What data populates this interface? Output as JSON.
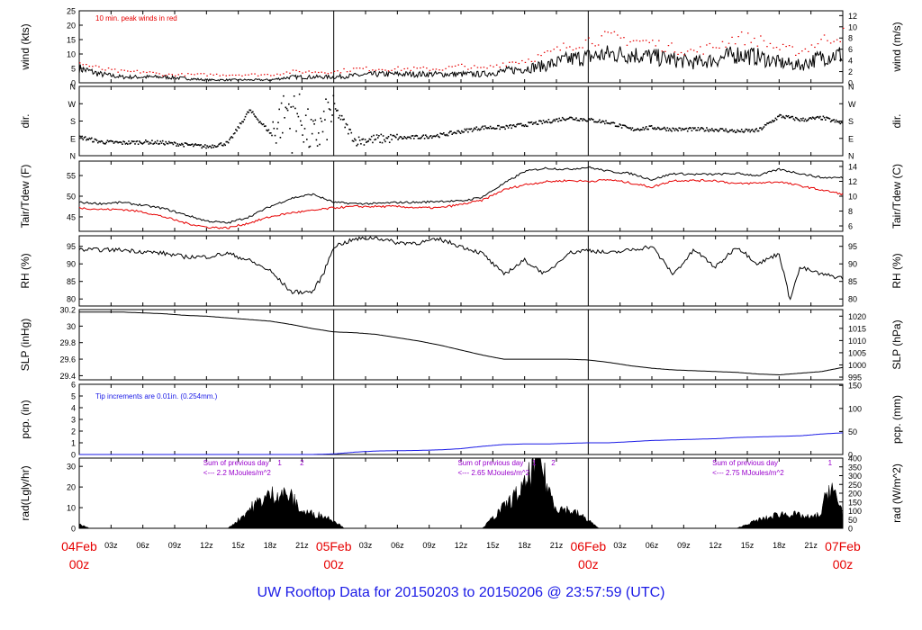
{
  "page": {
    "caption": "UW Rooftop Data for 20150203  to  20150206 @ 23:57:59  (UTC)",
    "caption_color": "#1a1ae6"
  },
  "colors": {
    "wind": "#000000",
    "peak": "#e60000",
    "tair": "#000000",
    "tdew": "#e60000",
    "precip": "#1a1ae6",
    "annotation_purple": "#9900cc",
    "date_red": "#e60000"
  },
  "chart_data": [
    {
      "id": "wind",
      "type": "line",
      "ylabel_left": "wind (kts)",
      "ylabel_right": "wind (m/s)",
      "ylim": [
        0,
        25
      ],
      "yticks": [
        0,
        5,
        10,
        15,
        20,
        25
      ],
      "right_ylim": [
        0,
        12.86
      ],
      "right_yticks": [
        0,
        2,
        4,
        6,
        8,
        10,
        12
      ],
      "annotation": "10 min. peak winds in red",
      "series": [
        {
          "name": "wind",
          "style": "line",
          "color": "#000000",
          "x": [
            0,
            2,
            4,
            6,
            8,
            10,
            12,
            14,
            16,
            18,
            20,
            22,
            24,
            26,
            28,
            30,
            32,
            34,
            36,
            38,
            40,
            42,
            44,
            46,
            48,
            50,
            52,
            54,
            56,
            58,
            60,
            62,
            64,
            66,
            68,
            70,
            72
          ],
          "y": [
            5,
            3,
            2,
            2,
            2,
            1.5,
            1,
            1,
            1,
            1,
            2,
            2,
            2,
            2.5,
            3,
            3,
            3,
            3,
            3,
            3,
            4,
            5,
            6,
            8,
            9,
            10,
            10,
            9,
            8,
            7,
            8,
            10,
            9,
            7,
            6,
            9,
            10
          ]
        },
        {
          "name": "10 min. peak winds",
          "style": "dots",
          "color": "#e60000",
          "x": [
            0,
            2,
            4,
            6,
            8,
            10,
            12,
            14,
            16,
            18,
            20,
            22,
            24,
            26,
            28,
            30,
            32,
            34,
            36,
            38,
            40,
            42,
            44,
            46,
            48,
            50,
            52,
            54,
            56,
            58,
            60,
            62,
            64,
            66,
            68,
            70,
            72
          ],
          "y": [
            7,
            5,
            4,
            4,
            3,
            3,
            3,
            3,
            3,
            3,
            4,
            4,
            4,
            5,
            5,
            5,
            5,
            5,
            6,
            5,
            7,
            8,
            10,
            13,
            15,
            16,
            15,
            14,
            12,
            11,
            13,
            16,
            15,
            12,
            11,
            15,
            17
          ]
        }
      ]
    },
    {
      "id": "dir",
      "type": "scatter",
      "ylabel_left": "dir.",
      "ylabel_right": "dir.",
      "ylim": [
        0,
        360
      ],
      "ytick_values": [
        0,
        90,
        180,
        270,
        360
      ],
      "ytick_labels": [
        "N",
        "E",
        "S",
        "W",
        "N"
      ],
      "series": [
        {
          "name": "direction",
          "style": "dots",
          "color": "#000000",
          "x": [
            0,
            2,
            4,
            6,
            8,
            10,
            12,
            14,
            16,
            18,
            20,
            22,
            24,
            26,
            28,
            30,
            32,
            34,
            36,
            38,
            40,
            42,
            44,
            46,
            48,
            50,
            52,
            54,
            56,
            58,
            60,
            62,
            64,
            66,
            68,
            70,
            72
          ],
          "y": [
            100,
            75,
            70,
            75,
            70,
            60,
            50,
            70,
            240,
            120,
            280,
            80,
            250,
            80,
            90,
            95,
            100,
            110,
            130,
            150,
            150,
            165,
            180,
            200,
            190,
            175,
            140,
            150,
            140,
            140,
            140,
            130,
            135,
            210,
            190,
            200,
            170
          ]
        }
      ]
    },
    {
      "id": "temp",
      "type": "line",
      "ylabel_left": "Tair/Tdew (F)",
      "ylabel_right": "Tair/Tdew (C)",
      "ylim": [
        41.5,
        58.5
      ],
      "yticks": [
        45,
        50,
        55
      ],
      "right_yticks": [
        6,
        8,
        10,
        12,
        14
      ],
      "series": [
        {
          "name": "Tair",
          "color": "#000000",
          "x": [
            0,
            2,
            4,
            6,
            8,
            10,
            12,
            14,
            16,
            18,
            20,
            22,
            24,
            26,
            28,
            30,
            32,
            34,
            36,
            38,
            40,
            42,
            44,
            46,
            48,
            50,
            52,
            54,
            56,
            58,
            60,
            62,
            64,
            66,
            68,
            70,
            72
          ],
          "y": [
            48.5,
            48.2,
            48.5,
            47.8,
            47,
            45.5,
            44,
            43.5,
            45,
            47.5,
            49.5,
            50.5,
            48.5,
            48.2,
            48.2,
            48.5,
            48.5,
            48.8,
            48.8,
            49.8,
            53,
            56,
            56.8,
            56.5,
            57,
            56,
            55.5,
            54,
            55.5,
            55.3,
            55.3,
            55.5,
            55,
            56.5,
            55.5,
            54.5,
            54.5
          ]
        },
        {
          "name": "Tdew",
          "color": "#e60000",
          "x": [
            0,
            2,
            4,
            6,
            8,
            10,
            12,
            14,
            16,
            18,
            20,
            22,
            24,
            26,
            28,
            30,
            32,
            34,
            36,
            38,
            40,
            42,
            44,
            46,
            48,
            50,
            52,
            54,
            56,
            58,
            60,
            62,
            64,
            66,
            68,
            70,
            72
          ],
          "y": [
            47.2,
            46.8,
            46.8,
            46.2,
            45,
            43.5,
            42.5,
            42.3,
            43.5,
            45,
            46,
            46.5,
            47.2,
            47.5,
            47.5,
            47.5,
            47.2,
            47.2,
            48,
            49,
            51.5,
            52.8,
            53.5,
            53.8,
            53.6,
            54,
            53.2,
            52.2,
            53.8,
            53.8,
            53.8,
            53,
            53.2,
            53.5,
            52.5,
            51.5,
            50.5
          ]
        }
      ]
    },
    {
      "id": "rh",
      "type": "line",
      "ylabel_left": "RH (%)",
      "ylabel_right": "RH (%)",
      "ylim": [
        78,
        98
      ],
      "yticks": [
        80,
        85,
        90,
        95
      ],
      "series": [
        {
          "name": "RH",
          "color": "#000000",
          "x": [
            0,
            2,
            4,
            6,
            8,
            10,
            12,
            14,
            16,
            18,
            20,
            21,
            22,
            23,
            24,
            26,
            28,
            30,
            32,
            34,
            36,
            38,
            40,
            42,
            44,
            46,
            48,
            50,
            52,
            54,
            56,
            58,
            60,
            62,
            64,
            66,
            67,
            68,
            70,
            72
          ],
          "y": [
            94,
            94,
            94,
            93.5,
            93,
            92,
            92,
            93,
            91,
            88,
            82,
            82,
            82,
            87,
            95,
            97,
            97.5,
            96,
            96,
            97,
            95,
            93,
            87,
            91,
            87,
            93,
            94,
            93,
            94,
            95,
            87,
            94,
            89,
            95,
            90,
            93,
            80,
            89,
            87,
            86
          ]
        }
      ]
    },
    {
      "id": "slp",
      "type": "line",
      "ylabel_left": "SLP (inHg)",
      "ylabel_right": "SLP (hPa)",
      "ylim": [
        29.35,
        30.2
      ],
      "yticks": [
        29.4,
        29.6,
        29.8,
        30.0,
        30.2
      ],
      "right_yticks": [
        995,
        1000,
        1005,
        1010,
        1015,
        1020
      ],
      "series": [
        {
          "name": "SLP",
          "color": "#000000",
          "x": [
            0,
            2,
            4,
            6,
            8,
            10,
            12,
            14,
            16,
            18,
            20,
            22,
            24,
            26,
            28,
            30,
            32,
            34,
            36,
            38,
            40,
            42,
            44,
            46,
            48,
            50,
            52,
            54,
            56,
            58,
            60,
            62,
            64,
            66,
            68,
            70,
            72
          ],
          "y": [
            30.17,
            30.17,
            30.17,
            30.16,
            30.15,
            30.13,
            30.12,
            30.1,
            30.08,
            30.06,
            30.02,
            29.97,
            29.93,
            29.92,
            29.9,
            29.86,
            29.82,
            29.77,
            29.71,
            29.65,
            29.6,
            29.6,
            29.6,
            29.6,
            29.59,
            29.56,
            29.52,
            29.49,
            29.47,
            29.46,
            29.45,
            29.44,
            29.42,
            29.41,
            29.43,
            29.45,
            29.5
          ]
        }
      ]
    },
    {
      "id": "pcp",
      "type": "line",
      "ylabel_left": "pcp. (in)",
      "ylabel_right": "pcp. (mm)",
      "ylim": [
        0,
        6
      ],
      "yticks": [
        0,
        1,
        2,
        3,
        4,
        5,
        6
      ],
      "right_ylim": [
        0,
        152.4
      ],
      "right_yticks": [
        0,
        50,
        100,
        150
      ],
      "annotation": "Tip increments are 0.01in. (0.254mm.)",
      "series": [
        {
          "name": "precip",
          "color": "#1a1ae6",
          "x": [
            0,
            4,
            8,
            12,
            16,
            20,
            22,
            24,
            26,
            28,
            32,
            34,
            36,
            38,
            40,
            42,
            44,
            46,
            48,
            50,
            52,
            54,
            56,
            58,
            60,
            62,
            64,
            66,
            68,
            70,
            72
          ],
          "y": [
            0,
            0,
            0,
            0,
            0,
            0,
            0,
            0.05,
            0.2,
            0.3,
            0.35,
            0.4,
            0.5,
            0.7,
            0.85,
            0.9,
            0.9,
            0.95,
            1.0,
            1.0,
            1.1,
            1.2,
            1.25,
            1.3,
            1.35,
            1.45,
            1.5,
            1.55,
            1.6,
            1.75,
            1.85
          ]
        }
      ]
    },
    {
      "id": "rad",
      "type": "area",
      "ylabel_left": "rad(Lgly/hr)",
      "ylabel_right": "rad (W/m^2)",
      "ylim": [
        0,
        34
      ],
      "yticks": [
        0,
        10,
        20,
        30
      ],
      "right_ylim": [
        0,
        400
      ],
      "right_yticks": [
        0,
        50,
        100,
        150,
        200,
        250,
        300,
        350,
        400
      ],
      "annotations": [
        {
          "line1": "Sum of previous day",
          "line2": "<--- 2.2 MJoules/m^2",
          "x": 10
        },
        {
          "line1": "Sum of previous day",
          "line2": "<--- 2.65 MJoules/m^2",
          "x": 34
        },
        {
          "line1": "Sum of previous day",
          "line2": "<--- 2.75 MJoules/m^2",
          "x": 58
        }
      ],
      "markers": [
        {
          "label": "1",
          "x": 18.9
        },
        {
          "label": "2",
          "x": 21.0
        },
        {
          "label": "1",
          "x": 42.9
        },
        {
          "label": "2",
          "x": 44.7
        },
        {
          "label": "1",
          "x": 70.8
        }
      ],
      "series": [
        {
          "name": "radiation",
          "color": "#000000",
          "x": [
            0,
            0.5,
            1,
            14,
            15,
            16,
            17,
            18,
            19,
            20,
            21,
            22,
            23,
            24,
            25,
            38,
            39,
            40,
            41,
            42,
            43,
            43.5,
            44,
            45,
            46,
            47,
            48,
            49,
            62,
            63,
            64,
            65,
            66,
            67,
            68,
            69,
            70,
            70.5,
            71,
            71.5,
            72
          ],
          "y": [
            2,
            1,
            0,
            0,
            4,
            9,
            13,
            16,
            17,
            15,
            8,
            7,
            6,
            4,
            0,
            0,
            5,
            10,
            15,
            20,
            32,
            35,
            22,
            10,
            9,
            7,
            4,
            0,
            0,
            2,
            4,
            5,
            7,
            7,
            6,
            5,
            7,
            18,
            20,
            12,
            9
          ]
        }
      ]
    }
  ],
  "xaxis": {
    "range_hours": [
      0,
      72
    ],
    "hour_ticks": [
      {
        "h": 3,
        "label": "03z"
      },
      {
        "h": 6,
        "label": "06z"
      },
      {
        "h": 9,
        "label": "09z"
      },
      {
        "h": 12,
        "label": "12z"
      },
      {
        "h": 15,
        "label": "15z"
      },
      {
        "h": 18,
        "label": "18z"
      },
      {
        "h": 21,
        "label": "21z"
      },
      {
        "h": 27,
        "label": "03z"
      },
      {
        "h": 30,
        "label": "06z"
      },
      {
        "h": 33,
        "label": "09z"
      },
      {
        "h": 36,
        "label": "12z"
      },
      {
        "h": 39,
        "label": "15z"
      },
      {
        "h": 42,
        "label": "18z"
      },
      {
        "h": 45,
        "label": "21z"
      },
      {
        "h": 51,
        "label": "03z"
      },
      {
        "h": 54,
        "label": "06z"
      },
      {
        "h": 57,
        "label": "09z"
      },
      {
        "h": 60,
        "label": "12z"
      },
      {
        "h": 63,
        "label": "15z"
      },
      {
        "h": 66,
        "label": "18z"
      },
      {
        "h": 69,
        "label": "21z"
      }
    ],
    "day_ticks": [
      {
        "h": 0,
        "date": "04Feb",
        "time": "00z"
      },
      {
        "h": 24,
        "date": "05Feb",
        "time": "00z"
      },
      {
        "h": 48,
        "date": "06Feb",
        "time": "00z"
      },
      {
        "h": 72,
        "date": "07Feb",
        "time": "00z"
      }
    ]
  }
}
